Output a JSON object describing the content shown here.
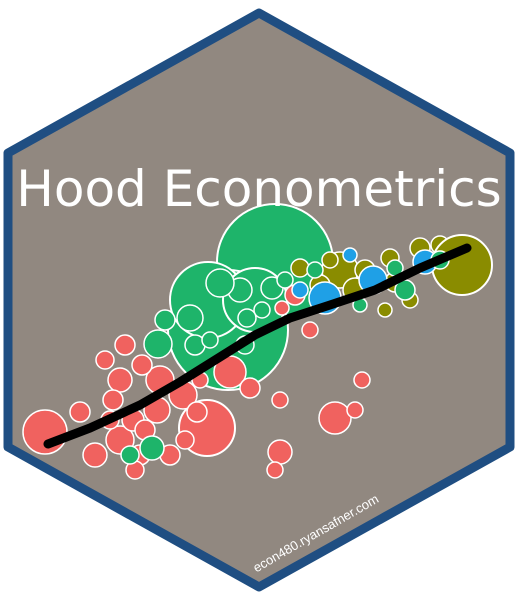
{
  "sticker": {
    "title": "Hood Econometrics",
    "url": "econ480.ryansafner.com"
  },
  "colors": {
    "hex_fill": "#918880",
    "hex_border": "#1f4e82",
    "title": "#ffffff",
    "url": "#ffffff",
    "bubble_red": "#f0625f",
    "bubble_green": "#1eb46a",
    "bubble_blue": "#1fa0e6",
    "bubble_olive": "#8a8c00",
    "bubble_stroke": "#ffffff",
    "trend_line": "#000000"
  },
  "icons": {
    "artwork": "bubble-scatter-with-trend-line"
  }
}
